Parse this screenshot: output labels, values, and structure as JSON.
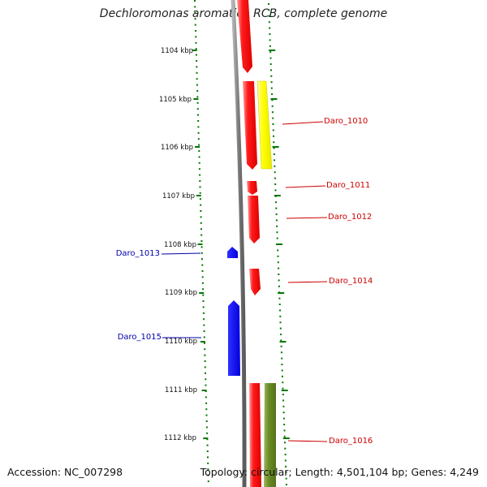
{
  "title": "Dechloromonas aromatica RCB, complete genome",
  "footer": {
    "accession": "Accession: NC_007298",
    "topology": "Topology: circular; Length: 4,501,104 bp; Genes: 4,249"
  },
  "ticks": [
    "1104 kbp",
    "1105 kbp",
    "1106 kbp",
    "1107 kbp",
    "1108 kbp",
    "1109 kbp",
    "1110 kbp",
    "1111 kbp",
    "1112 kbp"
  ],
  "genes": [
    {
      "name": "Daro_1010",
      "side": "right",
      "color": "#cc0000"
    },
    {
      "name": "Daro_1011",
      "side": "right",
      "color": "#cc0000"
    },
    {
      "name": "Daro_1012",
      "side": "right",
      "color": "#cc0000"
    },
    {
      "name": "Daro_1013",
      "side": "left",
      "color": "#0000aa"
    },
    {
      "name": "Daro_1014",
      "side": "right",
      "color": "#cc0000"
    },
    {
      "name": "Daro_1015",
      "side": "left",
      "color": "#0000aa"
    },
    {
      "name": "Daro_1016",
      "side": "right",
      "color": "#cc0000"
    }
  ],
  "colors": {
    "forward_strand": "#ff0000",
    "reverse_strand": "#0000ff",
    "yellow_feature": "#ffff00",
    "olive_feature": "#6b8e23",
    "tick_green": "#007700",
    "backbone": "#808080"
  }
}
